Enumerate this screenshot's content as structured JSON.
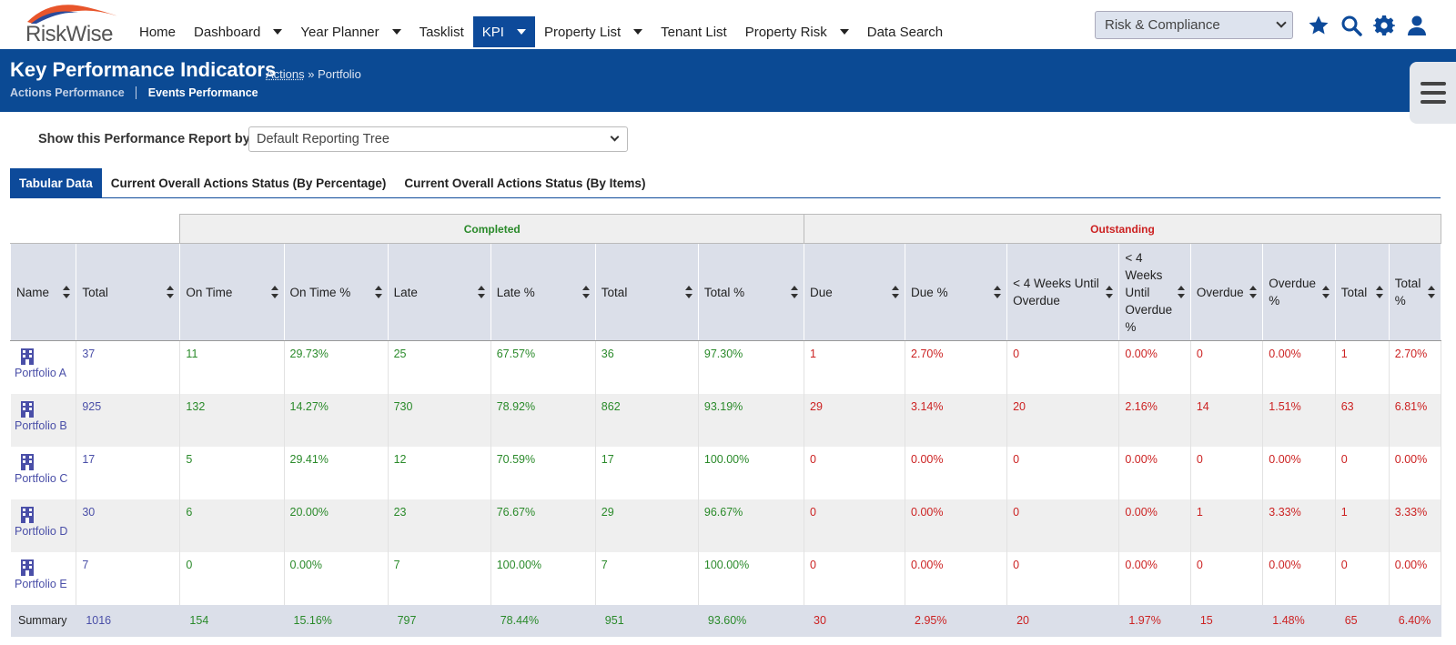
{
  "brand": {
    "logo_text": "RiskWise"
  },
  "nav": {
    "items": [
      {
        "label": "Home",
        "caret": false,
        "active": false
      },
      {
        "label": "Dashboard",
        "caret": true,
        "active": false
      },
      {
        "label": "Year Planner",
        "caret": true,
        "active": false
      },
      {
        "label": "Tasklist",
        "caret": false,
        "active": false
      },
      {
        "label": "KPI",
        "caret": true,
        "active": true
      },
      {
        "label": "Property List",
        "caret": true,
        "active": false
      },
      {
        "label": "Tenant List",
        "caret": false,
        "active": false
      },
      {
        "label": "Property Risk",
        "caret": true,
        "active": false
      },
      {
        "label": "Data Search",
        "caret": false,
        "active": false
      }
    ],
    "module_select": "Risk & Compliance",
    "icons": [
      "star-icon",
      "search-icon",
      "gear-icon",
      "user-icon"
    ]
  },
  "header": {
    "title": "Key Performance Indicators",
    "crumb_link": "Actions",
    "crumb_sep": " » ",
    "crumb_current": "Portfolio",
    "subnav_actions": "Actions Performance",
    "subnav_events": "Events Performance"
  },
  "report": {
    "label": "Show this Performance Report by:",
    "value": "Default Reporting Tree"
  },
  "tabs": [
    "Tabular Data",
    "Current Overall Actions Status (By Percentage)",
    "Current Overall Actions Status (By Items)"
  ],
  "table": {
    "group_completed": "Completed",
    "group_outstanding": "Outstanding",
    "headers": [
      "Name",
      "Total",
      "On Time",
      "On Time %",
      "Late",
      "Late %",
      "Total",
      "Total %",
      "Due",
      "Due %",
      "< 4 Weeks Until Overdue",
      "< 4 Weeks Until Overdue %",
      "Overdue",
      "Overdue %",
      "Total",
      "Total %"
    ],
    "rows": [
      {
        "name": "Portfolio A",
        "cells": [
          "37",
          "11",
          "29.73%",
          "25",
          "67.57%",
          "36",
          "97.30%",
          "1",
          "2.70%",
          "0",
          "0.00%",
          "0",
          "0.00%",
          "1",
          "2.70%"
        ]
      },
      {
        "name": "Portfolio B",
        "cells": [
          "925",
          "132",
          "14.27%",
          "730",
          "78.92%",
          "862",
          "93.19%",
          "29",
          "3.14%",
          "20",
          "2.16%",
          "14",
          "1.51%",
          "63",
          "6.81%"
        ]
      },
      {
        "name": "Portfolio C",
        "cells": [
          "17",
          "5",
          "29.41%",
          "12",
          "70.59%",
          "17",
          "100.00%",
          "0",
          "0.00%",
          "0",
          "0.00%",
          "0",
          "0.00%",
          "0",
          "0.00%"
        ]
      },
      {
        "name": "Portfolio D",
        "cells": [
          "30",
          "6",
          "20.00%",
          "23",
          "76.67%",
          "29",
          "96.67%",
          "0",
          "0.00%",
          "0",
          "0.00%",
          "1",
          "3.33%",
          "1",
          "3.33%"
        ]
      },
      {
        "name": "Portfolio E",
        "cells": [
          "7",
          "0",
          "0.00%",
          "7",
          "100.00%",
          "7",
          "100.00%",
          "0",
          "0.00%",
          "0",
          "0.00%",
          "0",
          "0.00%",
          "0",
          "0.00%"
        ]
      }
    ],
    "summary": {
      "label": "Summary",
      "cells": [
        "1016",
        "154",
        "15.16%",
        "797",
        "78.44%",
        "951",
        "93.60%",
        "30",
        "2.95%",
        "20",
        "1.97%",
        "15",
        "1.48%",
        "65",
        "6.40%"
      ]
    }
  },
  "colors": {
    "brand_blue": "#0b4a94",
    "completed_green": "#2a8a2a",
    "outstanding_red": "#cc2222",
    "link_blue": "#4a4fa8"
  }
}
